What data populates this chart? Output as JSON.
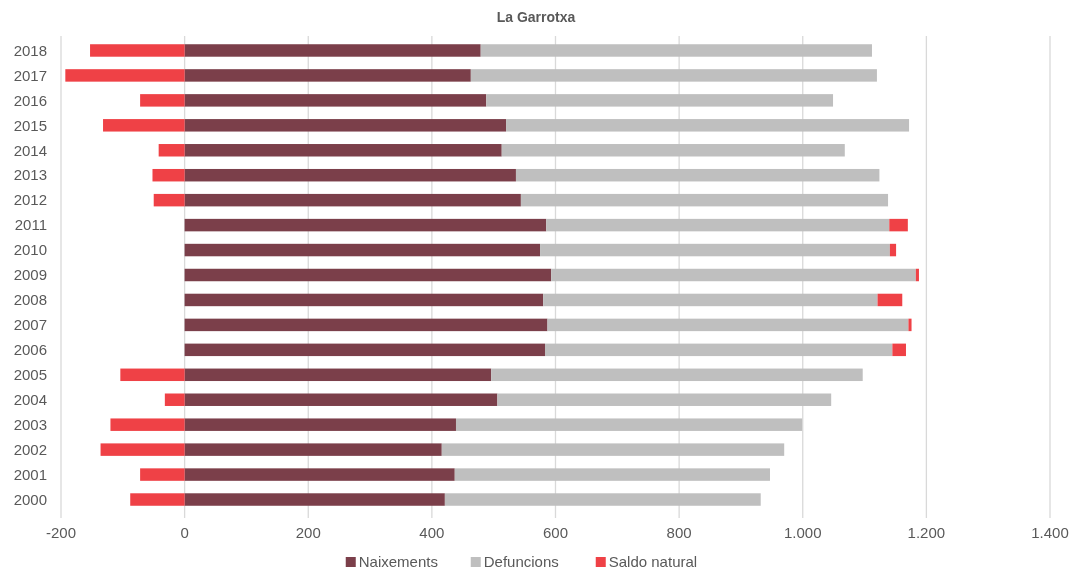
{
  "chart_data": {
    "type": "bar",
    "title": "La Garrotxa",
    "orientation": "horizontal",
    "stacked": true,
    "categories": [
      "2018",
      "2017",
      "2016",
      "2015",
      "2014",
      "2013",
      "2012",
      "2011",
      "2010",
      "2009",
      "2008",
      "2007",
      "2006",
      "2005",
      "2004",
      "2003",
      "2002",
      "2001",
      "2000"
    ],
    "series": [
      {
        "name": "Naixements",
        "color": "#7b3f4a",
        "values": [
          479,
          463,
          488,
          520,
          513,
          536,
          544,
          585,
          575,
          593,
          580,
          587,
          583,
          496,
          506,
          439,
          416,
          437,
          421
        ]
      },
      {
        "name": "Defuncions",
        "color": "#bfbfbf",
        "values": [
          633,
          657,
          561,
          652,
          555,
          588,
          594,
          555,
          566,
          590,
          541,
          584,
          562,
          601,
          540,
          560,
          554,
          510,
          511
        ]
      },
      {
        "name": "Saldo natural",
        "color": "#ef4146",
        "values": [
          -153,
          -193,
          -72,
          -132,
          -42,
          -52,
          -50,
          30,
          10,
          5,
          40,
          5,
          22,
          -104,
          -32,
          -120,
          -136,
          -72,
          -88
        ]
      }
    ],
    "xlim": [
      -200,
      1400
    ],
    "xticks": [
      -200,
      0,
      200,
      400,
      600,
      800,
      {
        "value": 1000,
        "label": "1.000"
      },
      {
        "value": 1200,
        "label": "1.200"
      },
      {
        "value": 1400,
        "label": "1.400"
      }
    ],
    "grid": "x",
    "legend": "bottom"
  }
}
